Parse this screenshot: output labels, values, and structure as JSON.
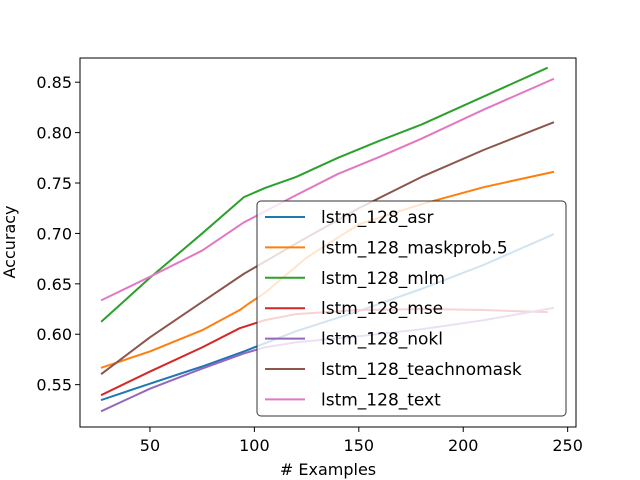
{
  "chart_data": {
    "type": "line",
    "title": "",
    "xlabel": "# Examples",
    "ylabel": "Accuracy",
    "xlim": [
      16.5,
      254
    ],
    "ylim": [
      0.508,
      0.874
    ],
    "xticks": [
      50,
      100,
      150,
      200,
      250
    ],
    "xtick_labels": [
      "50",
      "100",
      "150",
      "200",
      "250"
    ],
    "yticks": [
      0.55,
      0.6,
      0.65,
      0.7,
      0.75,
      0.8,
      0.85
    ],
    "ytick_labels": [
      "0.55",
      "0.60",
      "0.65",
      "0.70",
      "0.75",
      "0.80",
      "0.85"
    ],
    "grid": false,
    "legend_position": "lower-right",
    "series": [
      {
        "name": "lstm_128_asr",
        "color": "#1f77b4",
        "x": [
          27,
          50,
          75,
          95,
          120,
          150,
          180,
          210,
          243
        ],
        "y": [
          0.535,
          0.551,
          0.568,
          0.583,
          0.603,
          0.623,
          0.645,
          0.669,
          0.699
        ]
      },
      {
        "name": "lstm_128_maskprob.5",
        "color": "#ff7f0e",
        "x": [
          27,
          50,
          75,
          93,
          97,
          105,
          125,
          150,
          180,
          210,
          243
        ],
        "y": [
          0.567,
          0.583,
          0.604,
          0.624,
          0.63,
          0.641,
          0.676,
          0.709,
          0.729,
          0.746,
          0.761
        ]
      },
      {
        "name": "lstm_128_mlm",
        "color": "#2ca02c",
        "x": [
          27,
          50,
          75,
          95,
          105,
          120,
          140,
          160,
          180,
          210,
          240
        ],
        "y": [
          0.613,
          0.656,
          0.7,
          0.736,
          0.745,
          0.756,
          0.775,
          0.792,
          0.808,
          0.836,
          0.864
        ]
      },
      {
        "name": "lstm_128_mse",
        "color": "#d62728",
        "x": [
          27,
          50,
          75,
          93,
          105,
          120,
          150,
          180,
          210,
          240
        ],
        "y": [
          0.54,
          0.563,
          0.587,
          0.606,
          0.614,
          0.62,
          0.624,
          0.625,
          0.624,
          0.622
        ]
      },
      {
        "name": "lstm_128_nokl",
        "color": "#9467bd",
        "x": [
          27,
          50,
          75,
          95,
          105,
          120,
          150,
          180,
          210,
          243
        ],
        "y": [
          0.524,
          0.546,
          0.566,
          0.581,
          0.587,
          0.592,
          0.598,
          0.605,
          0.614,
          0.626
        ]
      },
      {
        "name": "lstm_128_teachnomask",
        "color": "#8c564b",
        "x": [
          27,
          50,
          75,
          95,
          120,
          150,
          180,
          210,
          243
        ],
        "y": [
          0.561,
          0.597,
          0.632,
          0.66,
          0.69,
          0.725,
          0.756,
          0.783,
          0.81
        ]
      },
      {
        "name": "lstm_128_text",
        "color": "#e377c2",
        "x": [
          27,
          50,
          75,
          95,
          120,
          140,
          160,
          180,
          210,
          243
        ],
        "y": [
          0.634,
          0.657,
          0.683,
          0.711,
          0.738,
          0.759,
          0.776,
          0.794,
          0.823,
          0.853
        ]
      }
    ]
  }
}
